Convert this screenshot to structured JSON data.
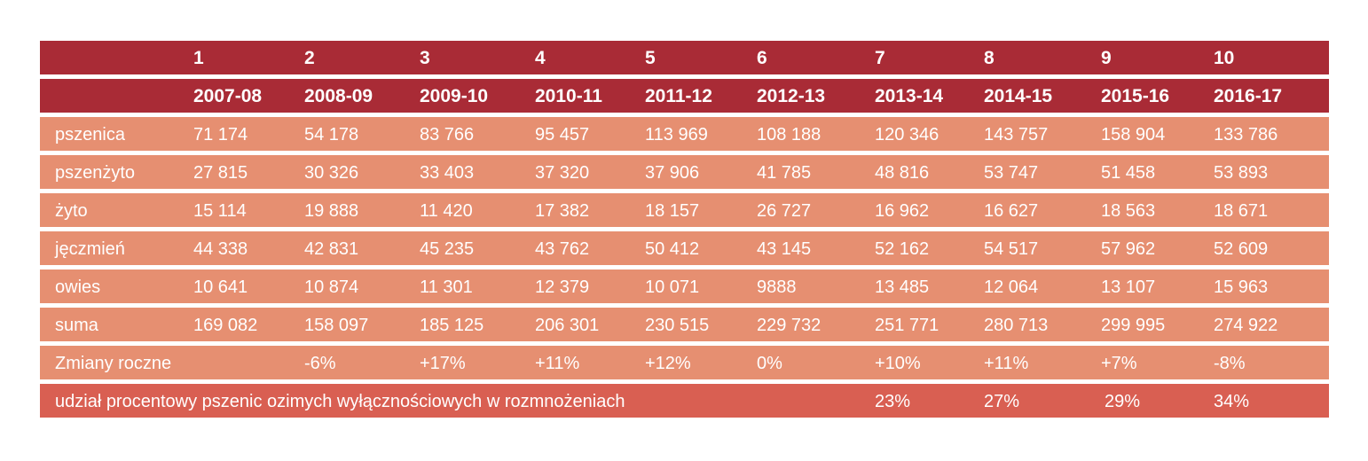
{
  "table": {
    "columns": [
      "1",
      "2",
      "3",
      "4",
      "5",
      "6",
      "7",
      "8",
      "9",
      "10"
    ],
    "seasons": [
      "2007-08",
      "2008-09",
      "2009-10",
      "2010-11",
      "2011-12",
      "2012-13",
      "2013-14",
      "2014-15",
      "2015-16",
      "2016-17"
    ],
    "rows": [
      {
        "label": "pszenica",
        "values": [
          "71 174",
          "54 178",
          "83 766",
          "95 457",
          "113 969",
          "108 188",
          "120 346",
          "143 757",
          "158 904",
          "133 786"
        ]
      },
      {
        "label": "pszenżyto",
        "values": [
          "27 815",
          "30 326",
          "33 403",
          "37 320",
          "37 906",
          "41 785",
          "48 816",
          "53 747",
          "51 458",
          "53 893"
        ]
      },
      {
        "label": "żyto",
        "values": [
          "15 114",
          "19 888",
          "11 420",
          "17 382",
          "18 157",
          "26 727",
          "16 962",
          "16 627",
          "18 563",
          "18 671"
        ]
      },
      {
        "label": "jęczmień",
        "values": [
          "44 338",
          "42 831",
          "45 235",
          "43 762",
          "50 412",
          "43 145",
          "52 162",
          "54 517",
          "57 962",
          "52 609"
        ]
      },
      {
        "label": "owies",
        "values": [
          "10 641",
          "10 874",
          "11 301",
          "12 379",
          "10 071",
          "9888",
          "13 485",
          "12 064",
          "13 107",
          "15 963"
        ]
      },
      {
        "label": "suma",
        "values": [
          "169 082",
          "158 097",
          "185 125",
          "206 301",
          "230 515",
          "229 732",
          "251 771",
          "280 713",
          "299 995",
          "274 922"
        ]
      },
      {
        "label": "Zmiany roczne",
        "values": [
          "",
          "-6%",
          "+17%",
          "+11%",
          "+12%",
          "0%",
          "+10%",
          "+11%",
          "+7%",
          "-8%"
        ]
      }
    ],
    "share": {
      "label": "udział procentowy pszenic ozimych wyłącznościowych w rozmnożeniach",
      "values": [
        "23%",
        "27%",
        "29%",
        "34%"
      ]
    }
  }
}
